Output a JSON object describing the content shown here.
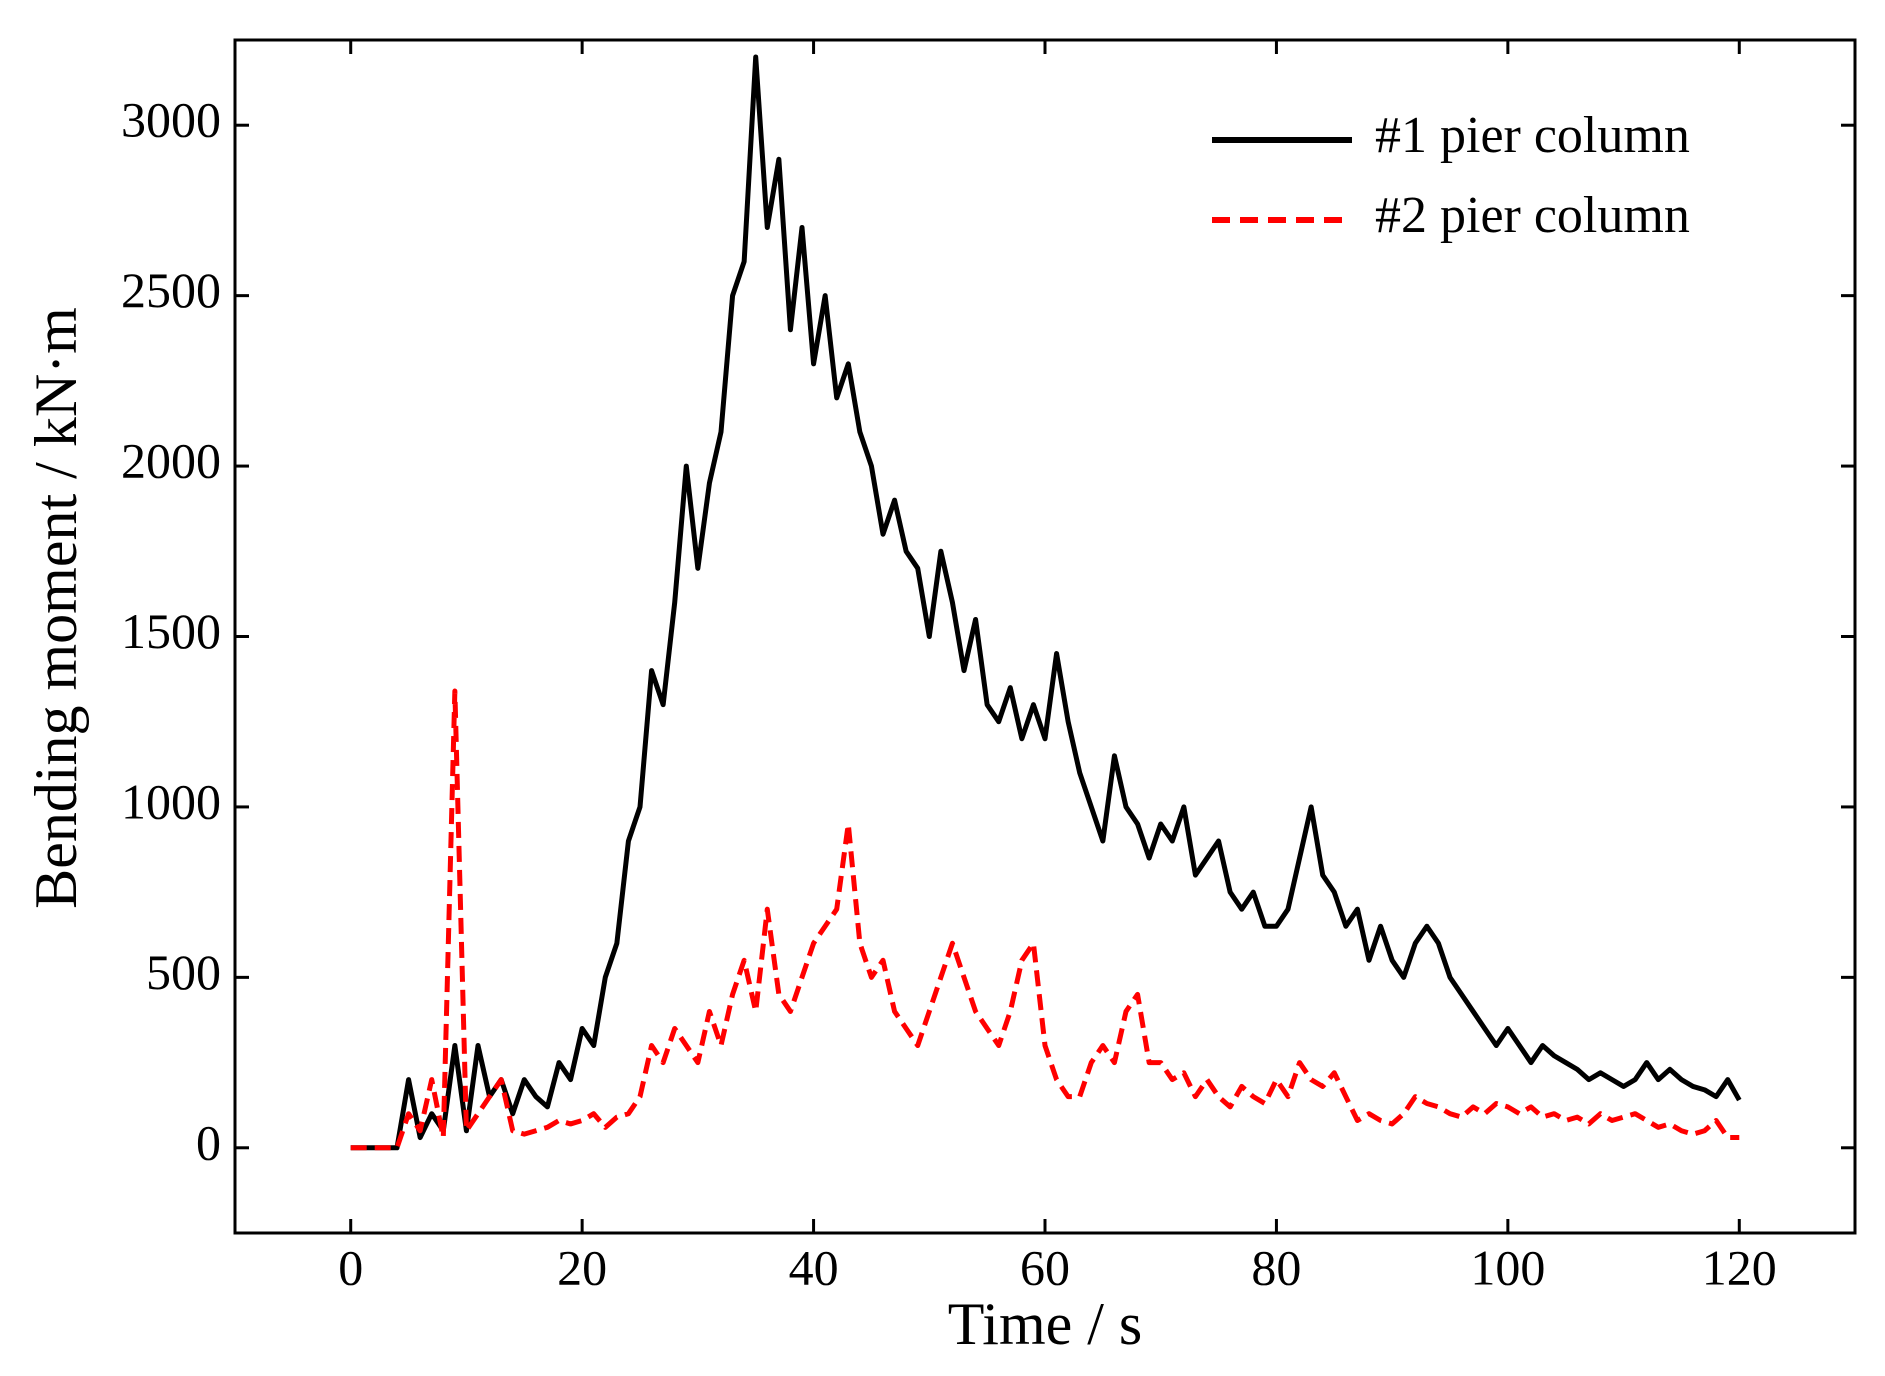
{
  "chart_data": {
    "type": "line",
    "xlabel": "Time / s",
    "ylabel": "Bending moment / kN·m",
    "xlim": [
      -10,
      130
    ],
    "xticks": [
      0,
      20,
      40,
      60,
      80,
      100,
      120
    ],
    "ylim": [
      -250,
      3250
    ],
    "yticks": [
      0,
      500,
      1000,
      1500,
      2000,
      2500,
      3000
    ],
    "legend": "upper right",
    "x": [
      0,
      1,
      2,
      3,
      4,
      5,
      6,
      7,
      8,
      9,
      10,
      11,
      12,
      13,
      14,
      15,
      16,
      17,
      18,
      19,
      20,
      21,
      22,
      23,
      24,
      25,
      26,
      27,
      28,
      29,
      30,
      31,
      32,
      33,
      34,
      35,
      36,
      37,
      38,
      39,
      40,
      41,
      42,
      43,
      44,
      45,
      46,
      47,
      48,
      49,
      50,
      51,
      52,
      53,
      54,
      55,
      56,
      57,
      58,
      59,
      60,
      61,
      62,
      63,
      64,
      65,
      66,
      67,
      68,
      69,
      70,
      71,
      72,
      73,
      74,
      75,
      76,
      77,
      78,
      79,
      80,
      81,
      82,
      83,
      84,
      85,
      86,
      87,
      88,
      89,
      90,
      91,
      92,
      93,
      94,
      95,
      96,
      97,
      98,
      99,
      100,
      101,
      102,
      103,
      104,
      105,
      106,
      107,
      108,
      109,
      110,
      111,
      112,
      113,
      114,
      115,
      116,
      117,
      118,
      119,
      120
    ],
    "series": [
      {
        "name": "#1 pier column",
        "color": "#000000",
        "dash": "solid",
        "values": [
          0,
          0,
          0,
          0,
          0,
          200,
          30,
          100,
          50,
          300,
          50,
          300,
          150,
          200,
          100,
          200,
          150,
          120,
          250,
          200,
          350,
          300,
          500,
          600,
          900,
          1000,
          1400,
          1300,
          1600,
          2000,
          1700,
          1950,
          2100,
          2500,
          2600,
          3200,
          2700,
          2900,
          2400,
          2700,
          2300,
          2500,
          2200,
          2300,
          2100,
          2000,
          1800,
          1900,
          1750,
          1700,
          1500,
          1750,
          1600,
          1400,
          1550,
          1300,
          1250,
          1350,
          1200,
          1300,
          1200,
          1450,
          1250,
          1100,
          1000,
          900,
          1150,
          1000,
          950,
          850,
          950,
          900,
          1000,
          800,
          850,
          900,
          750,
          700,
          750,
          650,
          650,
          700,
          850,
          1000,
          800,
          750,
          650,
          700,
          550,
          650,
          550,
          500,
          600,
          650,
          600,
          500,
          450,
          400,
          350,
          300,
          350,
          300,
          250,
          300,
          270,
          250,
          230,
          200,
          220,
          200,
          180,
          200,
          250,
          200,
          230,
          200,
          180,
          170,
          150,
          200,
          140
        ]
      },
      {
        "name": "#2 pier column",
        "color": "#ff0000",
        "dash": "dashed",
        "values": [
          0,
          0,
          0,
          0,
          0,
          100,
          50,
          200,
          30,
          1340,
          50,
          100,
          150,
          200,
          50,
          40,
          50,
          60,
          80,
          70,
          80,
          100,
          60,
          90,
          100,
          150,
          300,
          250,
          350,
          300,
          250,
          400,
          300,
          450,
          550,
          400,
          700,
          450,
          400,
          500,
          600,
          650,
          700,
          950,
          600,
          500,
          550,
          400,
          350,
          300,
          400,
          500,
          600,
          500,
          400,
          350,
          300,
          400,
          550,
          600,
          300,
          200,
          150,
          150,
          250,
          300,
          250,
          400,
          450,
          250,
          250,
          200,
          220,
          150,
          200,
          150,
          120,
          180,
          150,
          130,
          200,
          150,
          250,
          200,
          180,
          220,
          150,
          80,
          100,
          80,
          70,
          100,
          150,
          130,
          120,
          100,
          90,
          120,
          100,
          130,
          120,
          100,
          120,
          90,
          100,
          80,
          90,
          70,
          100,
          80,
          90,
          100,
          80,
          60,
          70,
          50,
          40,
          50,
          80,
          30,
          30
        ]
      }
    ]
  }
}
